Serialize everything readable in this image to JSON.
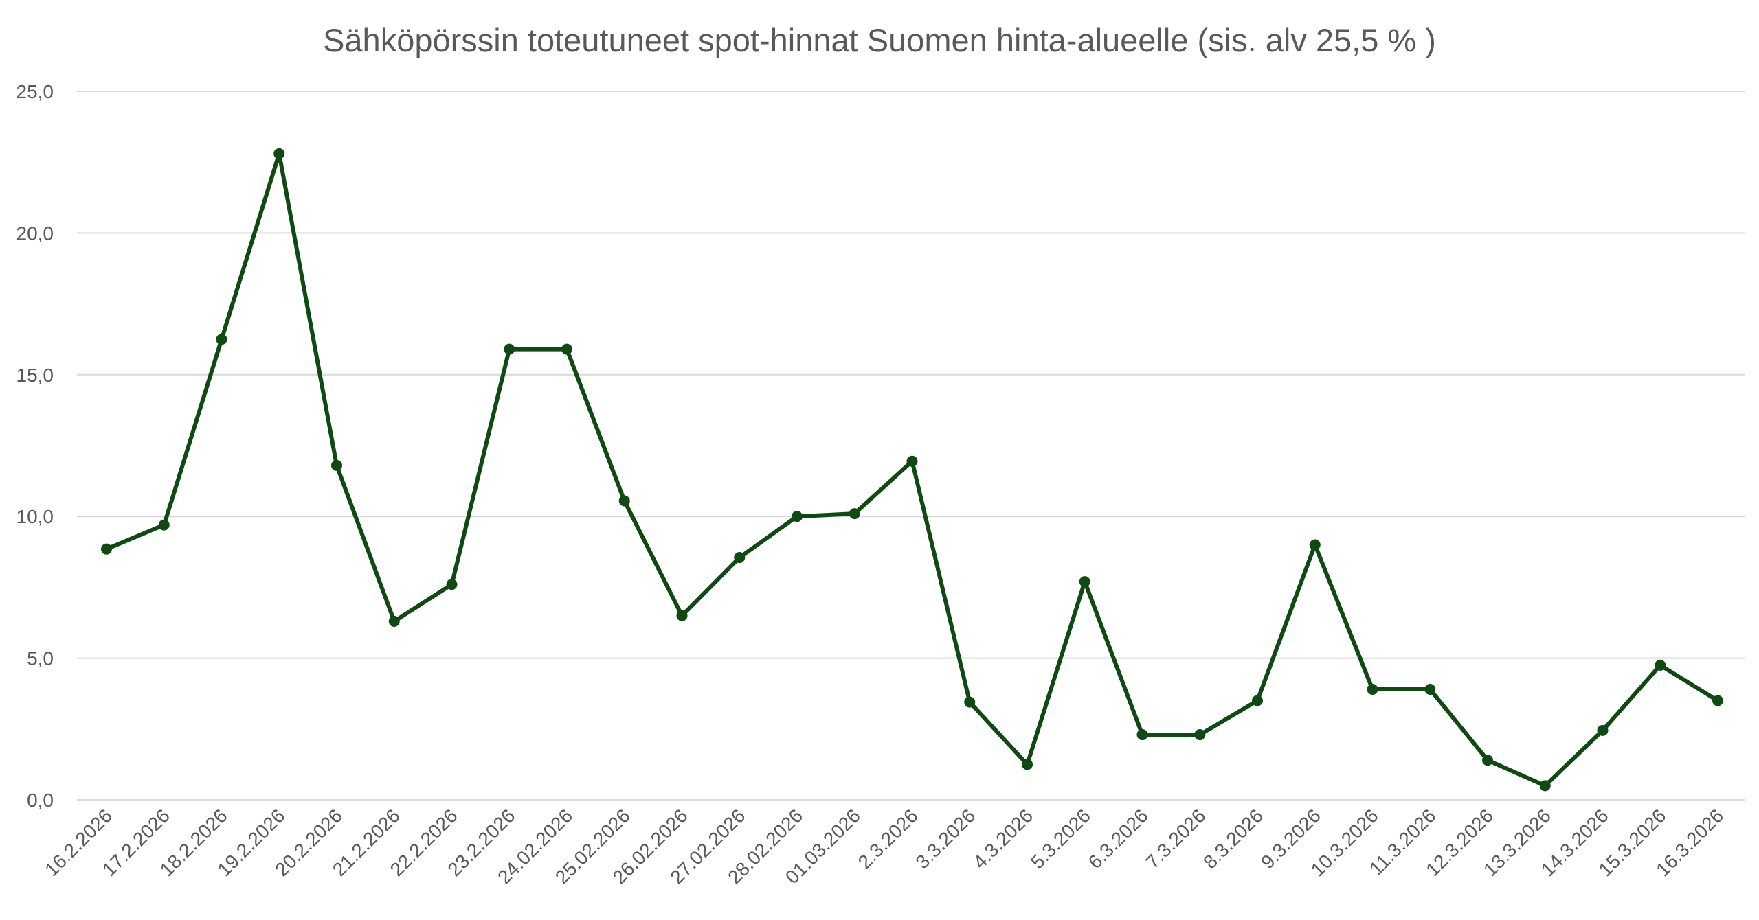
{
  "chart_data": {
    "type": "line",
    "title": "Sähköpörssin toteutuneet spot-hinnat Suomen hinta-alueelle (sis. alv 25,5 % )",
    "xlabel": "",
    "ylabel": "",
    "ylim": [
      0,
      25
    ],
    "y_ticks": [
      "0,0",
      "5,0",
      "10,0",
      "15,0",
      "20,0",
      "25,0"
    ],
    "y_tick_values": [
      0,
      5,
      10,
      15,
      20,
      25
    ],
    "grid": true,
    "legend": "none",
    "categories": [
      "16.2.2026",
      "17.2.2026",
      "18.2.2026",
      "19.2.2026",
      "20.2.2026",
      "21.2.2026",
      "22.2.2026",
      "23.2.2026",
      "24.02.2026",
      "25.02.2026",
      "26.02.2026",
      "27.02.2026",
      "28.02.2026",
      "01.03.2026",
      "2.3.2026",
      "3.3.2026",
      "4.3.2026",
      "5.3.2026",
      "6.3.2026",
      "7.3.2026",
      "8.3.2026",
      "9.3.2026",
      "10.3.2026",
      "11.3.2026",
      "12.3.2026",
      "13.3.2026",
      "14.3.2026",
      "15.3.2026",
      "16.3.2026"
    ],
    "series": [
      {
        "color": "#0f4a12",
        "values": [
          8.85,
          9.7,
          16.25,
          22.8,
          11.8,
          6.3,
          7.6,
          15.9,
          15.9,
          10.55,
          6.5,
          8.55,
          10.0,
          10.1,
          11.95,
          3.45,
          1.25,
          7.7,
          2.3,
          2.3,
          3.5,
          9.0,
          3.9,
          3.9,
          1.4,
          0.5,
          2.45,
          4.75,
          3.5
        ]
      }
    ]
  }
}
